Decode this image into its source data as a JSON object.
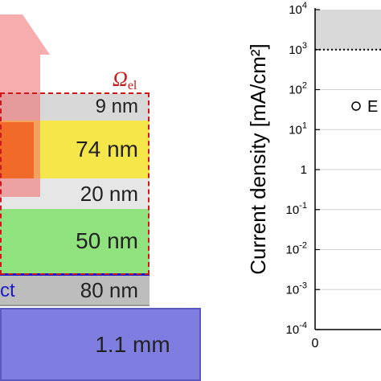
{
  "diagram": {
    "domain_label": "Ω",
    "domain_label_sub": "el",
    "contact_label": "ct",
    "layers": [
      {
        "name": "layer-9nm",
        "thickness": "9 nm",
        "color": "#d8d8d8"
      },
      {
        "name": "layer-74nm",
        "thickness": "74 nm",
        "color": "#f5e64a"
      },
      {
        "name": "layer-20nm",
        "thickness": "20 nm",
        "color": "#e6e6e6"
      },
      {
        "name": "layer-50nm",
        "thickness": "50 nm",
        "color": "#8fe27d"
      },
      {
        "name": "layer-80nm",
        "thickness": "80 nm",
        "color": "#bdbdbd"
      },
      {
        "name": "substrate",
        "thickness": "1.1 mm",
        "color": "#7f7ee0"
      }
    ],
    "colors": {
      "domain_border": "#cc1a1a",
      "contact_line": "#1a1acc",
      "arrow": "#f06a6a",
      "orange_block": "#f26a2a"
    }
  },
  "chart_data": {
    "type": "scatter",
    "ylabel": "Current density [mA/cm²]",
    "xlabel": "",
    "y_scale": "log",
    "ylim": [
      0.0001,
      10000
    ],
    "y_ticks": [
      {
        "base": "10",
        "exp": "4"
      },
      {
        "base": "10",
        "exp": "3"
      },
      {
        "base": "10",
        "exp": "2"
      },
      {
        "base": "10",
        "exp": "1"
      },
      {
        "base": "1",
        "exp": ""
      },
      {
        "base": "10",
        "exp": "-1"
      },
      {
        "base": "10",
        "exp": "-2"
      },
      {
        "base": "10",
        "exp": "-3"
      },
      {
        "base": "10",
        "exp": "-4"
      }
    ],
    "x_ticks": [
      "0"
    ],
    "shaded_band": [
      1000,
      10000
    ],
    "dotted_line_at": 1000,
    "legend_text": "E",
    "legend_marker": "open-circle",
    "grid": "horizontal"
  }
}
